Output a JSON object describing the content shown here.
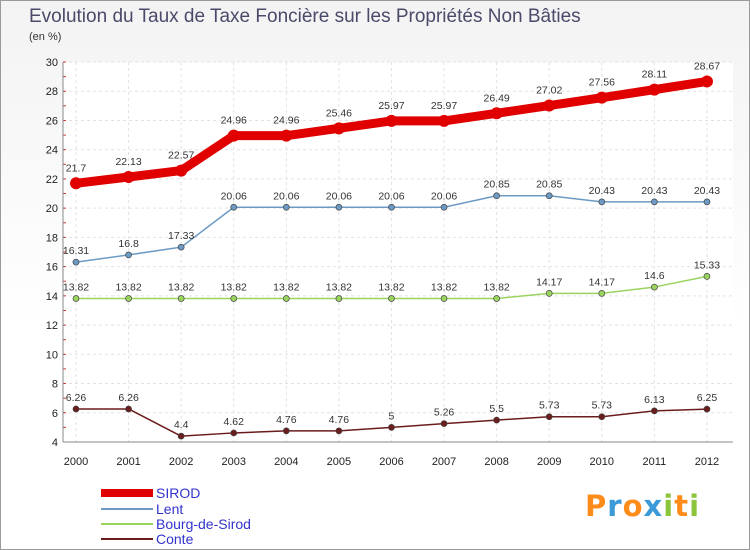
{
  "chart_data": {
    "type": "line",
    "title": "Evolution du Taux de Taxe Foncière sur les Propriétés Non Bâties",
    "subtitle": "(en %)",
    "x": [
      "2000",
      "2001",
      "2002",
      "2003",
      "2004",
      "2005",
      "2006",
      "2007",
      "2008",
      "2009",
      "2010",
      "2011",
      "2012"
    ],
    "ylim": [
      4,
      30
    ],
    "yticks": [
      4,
      6,
      8,
      10,
      12,
      14,
      16,
      18,
      20,
      22,
      24,
      26,
      28,
      30
    ],
    "grid": true,
    "legend_position": "bottom-left",
    "series": [
      {
        "name": "SIROD",
        "color": "#e00000",
        "width": 9,
        "values": [
          21.7,
          22.13,
          22.57,
          24.96,
          24.96,
          25.46,
          25.97,
          25.97,
          26.49,
          27.02,
          27.56,
          28.11,
          28.67
        ],
        "labels": [
          "21.7",
          "22.13",
          "22.57",
          "24.96",
          "24.96",
          "25.46",
          "25.97",
          "25.97",
          "26.49",
          "27.02",
          "27.56",
          "28.11",
          "28.67"
        ]
      },
      {
        "name": "Lent",
        "color": "#6c9ac4",
        "width": 1.5,
        "values": [
          16.31,
          16.8,
          17.33,
          20.06,
          20.06,
          20.06,
          20.06,
          20.06,
          20.85,
          20.85,
          20.43,
          20.43,
          20.43
        ],
        "labels": [
          "16.31",
          "16.8",
          "17.33",
          "20.06",
          "20.06",
          "20.06",
          "20.06",
          "20.06",
          "20.85",
          "20.85",
          "20.43",
          "20.43",
          "20.43"
        ]
      },
      {
        "name": "Bourg-de-Sirod",
        "color": "#9ad45f",
        "width": 1.5,
        "values": [
          13.82,
          13.82,
          13.82,
          13.82,
          13.82,
          13.82,
          13.82,
          13.82,
          13.82,
          14.17,
          14.17,
          14.6,
          15.33
        ],
        "labels": [
          "13.82",
          "13.82",
          "13.82",
          "13.82",
          "13.82",
          "13.82",
          "13.82",
          "13.82",
          "13.82",
          "14.17",
          "14.17",
          "14.6",
          "15.33"
        ]
      },
      {
        "name": "Conte",
        "color": "#6b1c1c",
        "width": 1.5,
        "values": [
          6.26,
          6.26,
          4.4,
          4.62,
          4.76,
          4.76,
          5,
          5.26,
          5.5,
          5.73,
          5.73,
          6.13,
          6.25
        ],
        "labels": [
          "6.26",
          "6.26",
          "4.4",
          "4.62",
          "4.76",
          "4.76",
          "5",
          "5.26",
          "5.5",
          "5.73",
          "5.73",
          "6.13",
          "6.25"
        ]
      }
    ]
  },
  "logo": {
    "letters": [
      "P",
      "r",
      "o",
      "x",
      "i",
      "t",
      "i"
    ],
    "colors": [
      "#ff8c1a",
      "#3c9ad8",
      "#ff8c1a",
      "#3c9ad8",
      "#8cc43c",
      "#ff8c1a",
      "#8cc43c"
    ]
  }
}
